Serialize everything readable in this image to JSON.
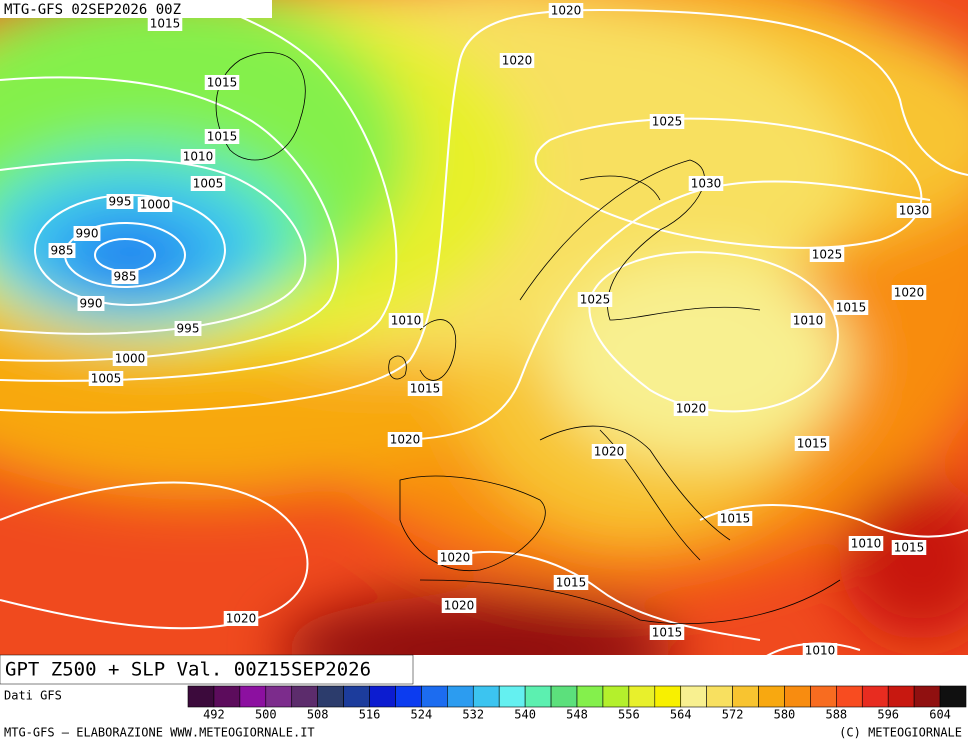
{
  "header": "MTG-GFS 02SEP2026 00Z",
  "isobar_labels": [
    "1015",
    "1020",
    "1020",
    "1015",
    "1015",
    "1010",
    "1005",
    "995",
    "1000",
    "990",
    "985",
    "985",
    "990",
    "995",
    "1000",
    "1005",
    "1025",
    "1030",
    "1030",
    "1025",
    "1025",
    "1020",
    "1015",
    "1010",
    "1010",
    "1015",
    "1020",
    "1020",
    "1015",
    "1020",
    "1015",
    "1010",
    "1015",
    "1020",
    "1015",
    "1020",
    "1020",
    "1015",
    "1010"
  ],
  "title": "GPT Z500 + SLP Val. 00Z15SEP2026",
  "source": "Dati GFS",
  "colorbar": {
    "ticks": [
      492,
      500,
      508,
      516,
      524,
      532,
      540,
      548,
      556,
      564,
      572,
      580,
      588,
      596,
      604
    ],
    "colors": [
      "#3c0a3c",
      "#5c0c5c",
      "#8c10a0",
      "#7c2c8c",
      "#5c2c6c",
      "#2c3c6c",
      "#1c3c9c",
      "#0c1cd0",
      "#0c3cf0",
      "#1c6cf0",
      "#2c9cf0",
      "#3cc4f0",
      "#64f0f0",
      "#5cf0b0",
      "#5ce07c",
      "#84f04c",
      "#b4f02c",
      "#e8f02c",
      "#f8f000",
      "#f8f090",
      "#f8e060",
      "#f8c430",
      "#f8a810",
      "#f88c10",
      "#f86c20",
      "#f84c20",
      "#e82c20",
      "#c81810",
      "#901010",
      "#101010"
    ]
  },
  "footer_left": "MTG-GFS — ELABORAZIONE WWW.METEOGIORNALE.IT",
  "footer_right": "(C) METEOGIORNALE"
}
